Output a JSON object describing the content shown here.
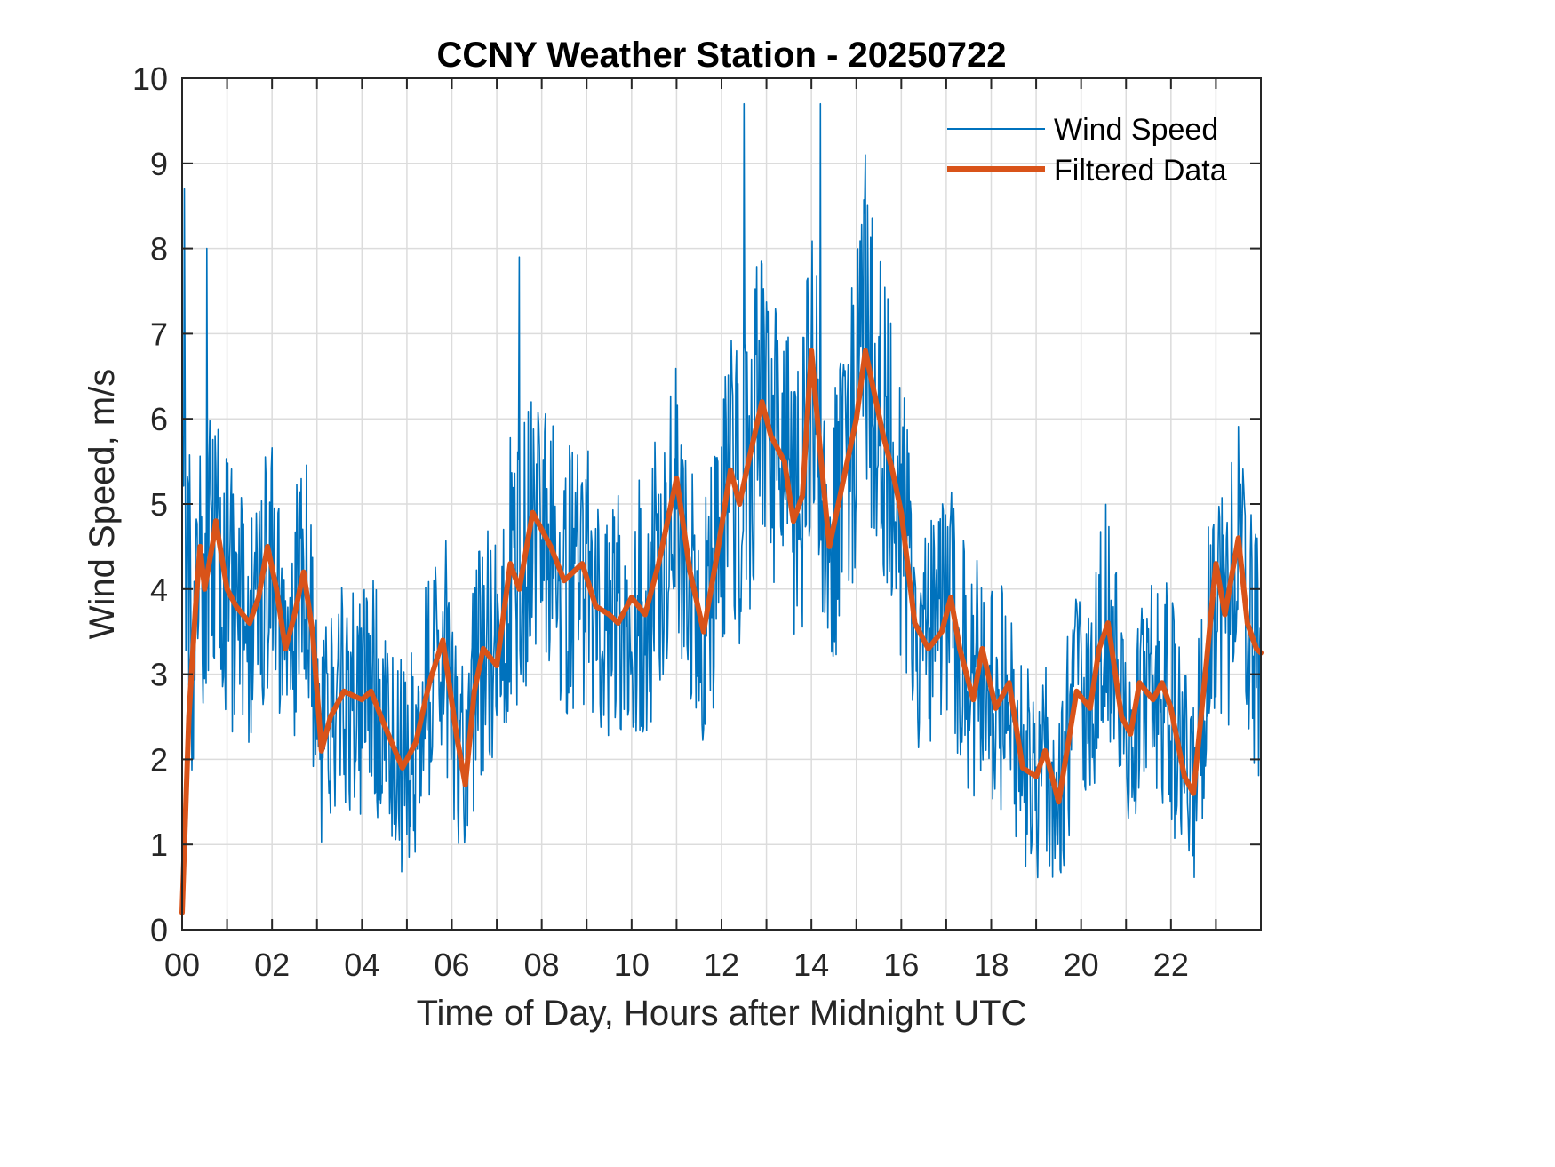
{
  "chart_data": {
    "type": "line",
    "title": "CCNY Weather Station - 20250722",
    "xlabel": "Time of Day, Hours after Midnight UTC",
    "ylabel": "Wind Speed, m/s",
    "xlim": [
      0,
      24
    ],
    "ylim": [
      0,
      10
    ],
    "xticks": [
      0,
      2,
      4,
      6,
      8,
      10,
      12,
      14,
      16,
      18,
      20,
      22
    ],
    "xtick_labels": [
      "00",
      "02",
      "04",
      "06",
      "08",
      "10",
      "12",
      "14",
      "16",
      "18",
      "20",
      "22"
    ],
    "yticks": [
      0,
      1,
      2,
      3,
      4,
      5,
      6,
      7,
      8,
      9,
      10
    ],
    "ytick_labels": [
      "0",
      "1",
      "2",
      "3",
      "4",
      "5",
      "6",
      "7",
      "8",
      "9",
      "10"
    ],
    "grid": true,
    "legend": {
      "placement": "top-right",
      "entries": [
        "Wind Speed",
        "Filtered Data"
      ]
    },
    "series": [
      {
        "name": "Wind Speed",
        "color": "#0072BD",
        "kind": "raw noisy samples (~1 per minute), approximated around the filtered curve",
        "range": [
          0.3,
          9.7
        ],
        "noise_amplitude": 1.9,
        "notable_peaks": [
          {
            "x": 0.05,
            "y": 8.7
          },
          {
            "x": 0.55,
            "y": 8.0
          },
          {
            "x": 7.5,
            "y": 7.9
          },
          {
            "x": 12.5,
            "y": 9.7
          },
          {
            "x": 14.2,
            "y": 9.7
          },
          {
            "x": 15.2,
            "y": 9.1
          }
        ]
      },
      {
        "name": "Filtered Data",
        "color": "#D95319",
        "x": [
          0.0,
          0.15,
          0.3,
          0.4,
          0.5,
          0.7,
          0.75,
          1.0,
          1.2,
          1.5,
          1.7,
          1.9,
          2.1,
          2.3,
          2.5,
          2.7,
          2.9,
          3.1,
          3.3,
          3.6,
          4.0,
          4.2,
          4.5,
          4.9,
          5.2,
          5.5,
          5.8,
          6.1,
          6.3,
          6.5,
          6.7,
          7.0,
          7.3,
          7.5,
          7.8,
          8.2,
          8.5,
          8.9,
          9.2,
          9.5,
          9.7,
          10.0,
          10.3,
          10.6,
          11.0,
          11.3,
          11.6,
          11.9,
          12.2,
          12.4,
          12.6,
          12.9,
          13.1,
          13.4,
          13.6,
          13.8,
          14.0,
          14.2,
          14.4,
          14.6,
          14.8,
          15.0,
          15.2,
          15.4,
          15.6,
          15.8,
          16.0,
          16.3,
          16.6,
          16.9,
          17.1,
          17.3,
          17.6,
          17.8,
          18.1,
          18.4,
          18.7,
          19.0,
          19.2,
          19.5,
          19.9,
          20.2,
          20.4,
          20.6,
          20.9,
          21.1,
          21.3,
          21.6,
          21.8,
          22.0,
          22.3,
          22.5,
          22.8,
          23.0,
          23.2,
          23.5,
          23.7,
          23.9,
          24.0
        ],
        "y": [
          0.2,
          2.5,
          3.8,
          4.5,
          4.0,
          4.6,
          4.8,
          4.0,
          3.8,
          3.6,
          3.9,
          4.5,
          4.0,
          3.3,
          3.7,
          4.2,
          3.5,
          2.1,
          2.5,
          2.8,
          2.7,
          2.8,
          2.4,
          1.9,
          2.2,
          2.9,
          3.4,
          2.3,
          1.7,
          2.8,
          3.3,
          3.1,
          4.3,
          4.0,
          4.9,
          4.5,
          4.1,
          4.3,
          3.8,
          3.7,
          3.6,
          3.9,
          3.7,
          4.3,
          5.3,
          4.2,
          3.5,
          4.4,
          5.4,
          5.0,
          5.5,
          6.2,
          5.8,
          5.5,
          4.8,
          5.1,
          6.8,
          5.6,
          4.5,
          5.0,
          5.5,
          6.0,
          6.8,
          6.3,
          5.8,
          5.4,
          4.9,
          3.6,
          3.3,
          3.5,
          3.9,
          3.3,
          2.7,
          3.3,
          2.6,
          2.9,
          1.9,
          1.8,
          2.1,
          1.5,
          2.8,
          2.6,
          3.3,
          3.6,
          2.5,
          2.3,
          2.9,
          2.7,
          2.9,
          2.6,
          1.8,
          1.6,
          3.2,
          4.3,
          3.7,
          4.6,
          3.6,
          3.3,
          3.25
        ]
      }
    ]
  }
}
